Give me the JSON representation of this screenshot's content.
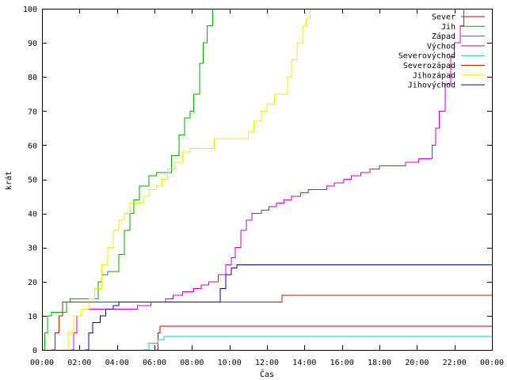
{
  "chart_data": {
    "type": "line",
    "xlabel": "Čas",
    "ylabel": "krát",
    "xlim": [
      0,
      24
    ],
    "ylim": [
      0,
      100
    ],
    "x_ticks": [
      {
        "v": 0,
        "label": "00:00"
      },
      {
        "v": 2,
        "label": "02:00"
      },
      {
        "v": 4,
        "label": "04:00"
      },
      {
        "v": 6,
        "label": "06:00"
      },
      {
        "v": 8,
        "label": "08:00"
      },
      {
        "v": 10,
        "label": "10:00"
      },
      {
        "v": 12,
        "label": "12:00"
      },
      {
        "v": 14,
        "label": "14:00"
      },
      {
        "v": 16,
        "label": "16:00"
      },
      {
        "v": 18,
        "label": "18:00"
      },
      {
        "v": 20,
        "label": "20:00"
      },
      {
        "v": 22,
        "label": "22:00"
      },
      {
        "v": 24,
        "label": "00:00"
      }
    ],
    "y_ticks": [
      0,
      10,
      20,
      30,
      40,
      50,
      60,
      70,
      80,
      90,
      100
    ],
    "grid": false,
    "legend_position": "top-right",
    "series": [
      {
        "name": "Sever",
        "color": "#cc0000",
        "points": [
          [
            6.1,
            0
          ],
          [
            6.2,
            5
          ],
          [
            6.3,
            7
          ],
          [
            24,
            7
          ]
        ]
      },
      {
        "name": "Jih",
        "color": "#00aa00",
        "points": [
          [
            0,
            0
          ],
          [
            0.15,
            5
          ],
          [
            0.3,
            10
          ],
          [
            0.5,
            11
          ],
          [
            1.3,
            14
          ],
          [
            1.5,
            15
          ],
          [
            2.7,
            15
          ],
          [
            3,
            20
          ],
          [
            3.2,
            22
          ],
          [
            3.5,
            23
          ],
          [
            3.8,
            23
          ],
          [
            4.1,
            28
          ],
          [
            4.4,
            35
          ],
          [
            4.7,
            40
          ],
          [
            4.9,
            44
          ],
          [
            5.2,
            48
          ],
          [
            5.4,
            48
          ],
          [
            5.7,
            51
          ],
          [
            6.1,
            52
          ],
          [
            6.6,
            52
          ],
          [
            6.9,
            57
          ],
          [
            7.3,
            63
          ],
          [
            7.6,
            68
          ],
          [
            7.9,
            70
          ],
          [
            8.1,
            75
          ],
          [
            8.4,
            84
          ],
          [
            8.6,
            90
          ],
          [
            8.8,
            95
          ],
          [
            9.1,
            100
          ]
        ]
      },
      {
        "name": "Západ",
        "color": "#0088aa",
        "points": []
      },
      {
        "name": "Východ",
        "color": "#cc00cc",
        "points": [
          [
            1.55,
            0
          ],
          [
            1.7,
            5
          ],
          [
            1.85,
            10
          ],
          [
            2.1,
            12
          ],
          [
            4.6,
            12
          ],
          [
            5.1,
            13
          ],
          [
            5.8,
            14
          ],
          [
            6.6,
            15
          ],
          [
            7,
            16
          ],
          [
            7.5,
            17
          ],
          [
            8.1,
            18
          ],
          [
            8.5,
            19
          ],
          [
            8.9,
            20
          ],
          [
            9.4,
            22
          ],
          [
            9.8,
            25
          ],
          [
            10.1,
            27
          ],
          [
            10.3,
            30
          ],
          [
            10.6,
            35
          ],
          [
            10.9,
            38
          ],
          [
            11.2,
            40
          ],
          [
            11.7,
            41
          ],
          [
            12.1,
            42
          ],
          [
            12.5,
            43
          ],
          [
            12.9,
            44
          ],
          [
            13.3,
            45
          ],
          [
            13.8,
            46
          ],
          [
            14.2,
            47
          ],
          [
            14.8,
            47
          ],
          [
            15.2,
            48
          ],
          [
            15.6,
            49
          ],
          [
            16.1,
            50
          ],
          [
            16.5,
            51
          ],
          [
            17,
            52
          ],
          [
            17.5,
            53
          ],
          [
            18,
            54
          ],
          [
            19,
            54
          ],
          [
            19.4,
            55
          ],
          [
            20.1,
            56
          ],
          [
            20.6,
            56
          ],
          [
            20.8,
            60
          ],
          [
            21,
            65
          ],
          [
            21.2,
            70
          ],
          [
            21.5,
            78
          ],
          [
            21.8,
            86
          ],
          [
            22,
            90
          ],
          [
            22.3,
            95
          ],
          [
            22.5,
            100
          ]
        ]
      },
      {
        "name": "Severovýchod",
        "color": "#00cccc",
        "points": [
          [
            5.4,
            0
          ],
          [
            5.7,
            2
          ],
          [
            6.2,
            3
          ],
          [
            6.5,
            4
          ],
          [
            24,
            4
          ]
        ]
      },
      {
        "name": "Severozápad",
        "color": "#aa2200",
        "points": [
          [
            0.5,
            0
          ],
          [
            0.7,
            5
          ],
          [
            0.9,
            10
          ],
          [
            1.1,
            14
          ],
          [
            12.6,
            14
          ],
          [
            12.8,
            16
          ],
          [
            24,
            16
          ]
        ]
      },
      {
        "name": "Jihozápad",
        "color": "#eeee00",
        "points": [
          [
            1.1,
            0
          ],
          [
            1.4,
            5
          ],
          [
            1.7,
            10
          ],
          [
            2.1,
            12
          ],
          [
            2.5,
            15
          ],
          [
            2.8,
            18
          ],
          [
            3.2,
            25
          ],
          [
            3.5,
            30
          ],
          [
            3.8,
            35
          ],
          [
            4.1,
            38
          ],
          [
            4.4,
            40
          ],
          [
            4.7,
            43
          ],
          [
            5.1,
            43
          ],
          [
            5.4,
            45
          ],
          [
            5.7,
            47
          ],
          [
            6.1,
            48
          ],
          [
            6.4,
            50
          ],
          [
            6.7,
            53
          ],
          [
            7.1,
            55
          ],
          [
            7.5,
            58
          ],
          [
            7.9,
            59
          ],
          [
            9,
            59
          ],
          [
            9.2,
            62
          ],
          [
            10.7,
            62
          ],
          [
            11,
            64
          ],
          [
            11.3,
            67
          ],
          [
            11.7,
            70
          ],
          [
            12,
            72
          ],
          [
            12.4,
            75
          ],
          [
            12.9,
            75
          ],
          [
            13.1,
            80
          ],
          [
            13.3,
            85
          ],
          [
            13.6,
            90
          ],
          [
            13.9,
            95
          ],
          [
            14.1,
            97
          ],
          [
            14.3,
            100
          ]
        ]
      },
      {
        "name": "Jihovýchod",
        "color": "#0000aa",
        "points": [
          [
            2.3,
            0
          ],
          [
            2.5,
            5
          ],
          [
            2.7,
            8
          ],
          [
            3.1,
            10
          ],
          [
            3.4,
            12
          ],
          [
            3.8,
            13
          ],
          [
            4.1,
            14
          ],
          [
            9.2,
            14
          ],
          [
            9.5,
            18
          ],
          [
            9.8,
            22
          ],
          [
            10.1,
            24
          ],
          [
            10.4,
            25
          ],
          [
            24,
            25
          ]
        ]
      }
    ]
  }
}
